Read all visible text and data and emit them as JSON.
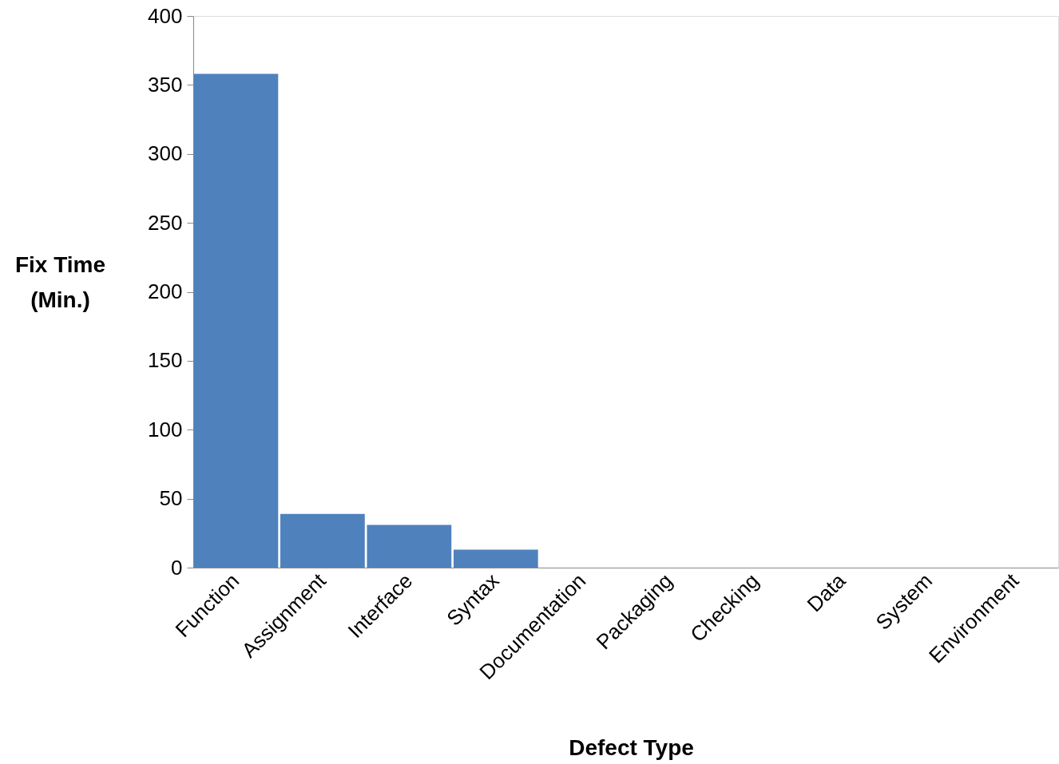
{
  "chart_data": {
    "type": "bar",
    "xlabel": "Defect Type",
    "ylabel": "Fix Time (Min.)",
    "categories": [
      "Function",
      "Assignment",
      "Interface",
      "Syntax",
      "Documentation",
      "Packaging",
      "Checking",
      "Data",
      "System",
      "Environment"
    ],
    "values": [
      358,
      39,
      31,
      13,
      0,
      0,
      0,
      0,
      0,
      0
    ],
    "color": "#4f81bd",
    "ylim": [
      0,
      400
    ],
    "yticks": [
      0,
      50,
      100,
      150,
      200,
      250,
      300,
      350,
      400
    ],
    "grid": false
  }
}
